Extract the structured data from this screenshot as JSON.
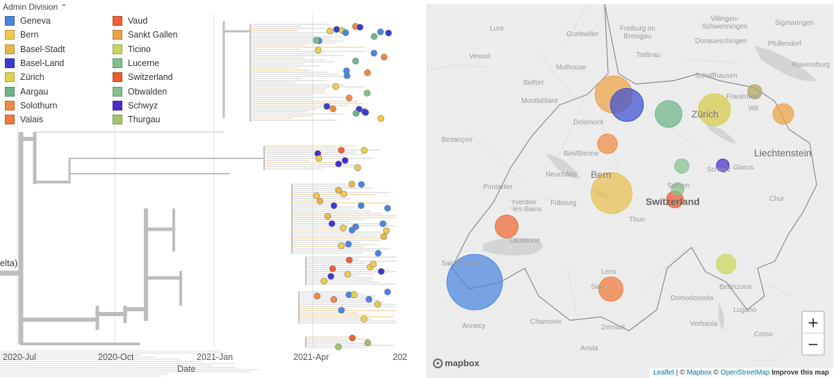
{
  "legend": {
    "title": "Admin Division",
    "caret": "^",
    "col1": [
      {
        "label": "Geneva",
        "color": "#4a86e0"
      },
      {
        "label": "Bern",
        "color": "#f2c94c"
      },
      {
        "label": "Basel-Stadt",
        "color": "#e8b84a"
      },
      {
        "label": "Basel-Land",
        "color": "#3b3bd1"
      },
      {
        "label": "Zürich",
        "color": "#e2d24b"
      },
      {
        "label": "Aargau",
        "color": "#6fb58a"
      },
      {
        "label": "Solothurn",
        "color": "#f08a44"
      },
      {
        "label": "Valais",
        "color": "#f07a3a"
      }
    ],
    "col2": [
      {
        "label": "Vaud",
        "color": "#f06034"
      },
      {
        "label": "Sankt Gallen",
        "color": "#eca244"
      },
      {
        "label": "Ticino",
        "color": "#cdd65a"
      },
      {
        "label": "Lucerne",
        "color": "#7fbf8a"
      },
      {
        "label": "Switzerland",
        "color": "#ec5a2e"
      },
      {
        "label": "Obwalden",
        "color": "#86c28e"
      },
      {
        "label": "Schwyz",
        "color": "#4a2ec8"
      },
      {
        "label": "Thurgau",
        "color": "#a2c46a"
      }
    ]
  },
  "tree": {
    "x_axis_label": "Date",
    "ticks": [
      "2020-Jul",
      "2020-Oct",
      "2021-Jan",
      "2021-Apr",
      "202"
    ],
    "clade_label": "elta)"
  },
  "map": {
    "places": {
      "freiburg": "Freiburg im\nBreisgau",
      "mulhouse": "Mulhouse",
      "besancon": "Besançon",
      "bern": "Bern",
      "zurich": "Zürich",
      "liechtenstein": "Liechtenstein",
      "switzerland": "Switzerland",
      "lausanne": "Lausanne",
      "annecy": "Annecy",
      "verbania": "Verbania",
      "fribourg": "Fribourg",
      "lens": "Lens",
      "zermatt": "Zermatt",
      "aosta": "Aosta",
      "pontarlier": "Pontarlier",
      "montbeliard": "Montbéliard",
      "vesoul": "Vesoul",
      "delemont": "Delémont",
      "neuchatel": "Neuchâtel",
      "biel": "Biel/Bienne",
      "todtnau": "Todtnau",
      "villingen": "Villingen-\nSchwenningen",
      "sigmaringen": "Sigmaringen",
      "ravensburg": "Ravensburg",
      "pfullendorf": "Pfullendorf",
      "donaueschingen": "Donaueschingen",
      "schaffhausen": "Schaffhausen",
      "frauenfeld": "Frauenfeld",
      "wil": "Wil",
      "glarus": "Glarus",
      "chur": "Chur",
      "schwyz": "Schwyz",
      "sion": "Sion",
      "bellinzona": "Bellinzona",
      "lugano": "Lugano",
      "como": "Como",
      "domodossola": "Domodossola",
      "thun": "Thun",
      "sachseln": "Sarnen",
      "yverdon": "Yverdon",
      "les_bains": "-les-Bains",
      "saint_claude": "Saint-Claude",
      "chamonix": "Chamonix",
      "gueb": "Guebwiller",
      "belfort": "Belfort",
      "vosges": "Lure"
    },
    "zoom_in": "+",
    "zoom_out": "−",
    "logo_text": "mapbox",
    "attribution": {
      "leaflet": "Leaflet",
      "sep": " | © ",
      "mapbox": "Mapbox",
      "sep2": " © ",
      "osm": "OpenStreetMap",
      "improve": "Improve this map"
    },
    "bubbles": [
      {
        "name": "Geneva",
        "color": "#4a86e0",
        "cases": 100
      },
      {
        "name": "Bern",
        "color": "#e8c150",
        "cases": 50
      },
      {
        "name": "Basel-Stadt",
        "color": "#eca244",
        "cases": 40
      },
      {
        "name": "Basel-Land",
        "color": "#3b4fd1",
        "cases": 30
      },
      {
        "name": "Zürich",
        "color": "#d7cb4b",
        "cases": 28
      },
      {
        "name": "Aargau",
        "color": "#6fb58a",
        "cases": 18
      },
      {
        "name": "Solothurn",
        "color": "#f08a44",
        "cases": 8
      },
      {
        "name": "Vaud",
        "color": "#ee6a34",
        "cases": 12
      },
      {
        "name": "Valais",
        "color": "#f07a3a",
        "cases": 14
      },
      {
        "name": "Sankt Gallen",
        "color": "#eca244",
        "cases": 9
      },
      {
        "name": "Ticino",
        "color": "#cdd65a",
        "cases": 8
      },
      {
        "name": "Lucerne",
        "color": "#86c28e",
        "cases": 3
      },
      {
        "name": "Switzerland",
        "color": "#ec5a2e",
        "cases": 5
      },
      {
        "name": "Obwalden",
        "color": "#86c28e",
        "cases": 2
      },
      {
        "name": "Schwyz",
        "color": "#4a2ec8",
        "cases": 2
      },
      {
        "name": "Thurgau",
        "color": "#b0a860",
        "cases": 3
      }
    ]
  }
}
